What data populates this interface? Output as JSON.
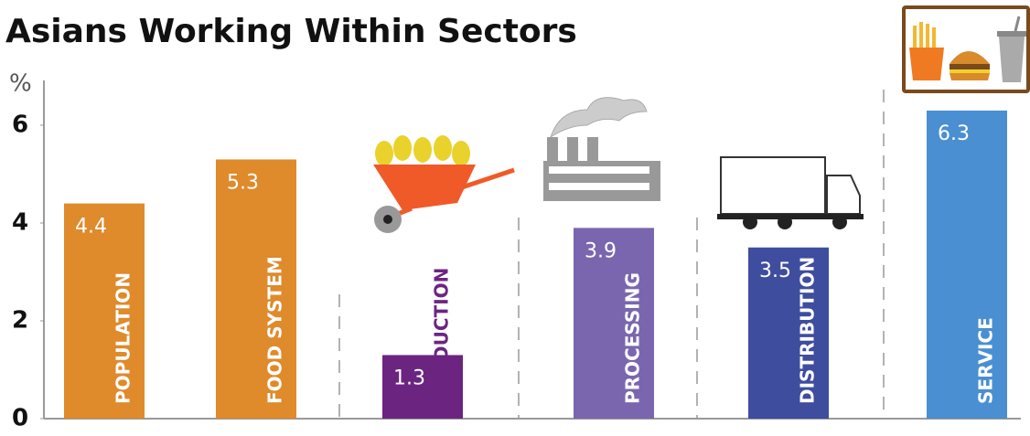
{
  "chart_data": {
    "type": "bar",
    "title": "Asians Working Within Sectors",
    "y_label": "%",
    "categories": [
      "POPULATION",
      "FOOD SYSTEM",
      "PRODUCTION",
      "PROCESSING",
      "DISTRIBUTION",
      "SERVICE"
    ],
    "values": [
      4.4,
      5.3,
      1.3,
      3.9,
      3.5,
      6.3
    ],
    "colors": [
      "#df8a2b",
      "#df8a2b",
      "#6b2581",
      "#7a66ae",
      "#3f4d9f",
      "#4a8fd1"
    ],
    "ylim": [
      0,
      7
    ],
    "yticks": [
      0,
      2,
      4,
      6
    ]
  }
}
